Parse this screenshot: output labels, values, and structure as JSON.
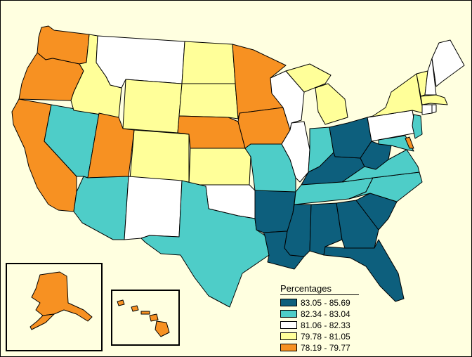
{
  "colors": {
    "background": "#ffffe0",
    "class_1": "#0d5f7d",
    "class_2": "#4ecdc8",
    "class_3": "#ffffff",
    "class_4": "#ffff99",
    "class_5": "#f79122"
  },
  "legend": {
    "title": "Percentages",
    "items": [
      {
        "label": "83.05 - 85.69",
        "color": "#0d5f7d"
      },
      {
        "label": "82.34 - 83.04",
        "color": "#4ecdc8"
      },
      {
        "label": "81.06 - 82.33",
        "color": "#ffffff"
      },
      {
        "label": "79.78 - 81.05",
        "color": "#ffff99"
      },
      {
        "label": "78.19 - 79.77",
        "color": "#f79122"
      }
    ]
  },
  "states": {
    "WA": 5,
    "OR": 5,
    "CA": 5,
    "UT": 5,
    "NE": 5,
    "MN": 5,
    "IA": 5,
    "DE": 5,
    "AK": 5,
    "HI": 5,
    "ID": 4,
    "WY": 4,
    "CO": 4,
    "ND": 4,
    "SD": 4,
    "KS": 4,
    "MI": 4,
    "NY": 4,
    "VT": 4,
    "MA": 4,
    "MT": 3,
    "NM": 3,
    "OK": 3,
    "WI": 3,
    "IL": 3,
    "PA": 3,
    "NH": 3,
    "ME": 3,
    "CT": 3,
    "RI": 3,
    "NV": 2,
    "AZ": 2,
    "TX": 2,
    "MO": 2,
    "IN": 2,
    "TN": 2,
    "VA": 2,
    "NC": 2,
    "NJ": 2,
    "MD": 2,
    "KY": 1,
    "OH": 1,
    "WV": 1,
    "AR": 1,
    "LA": 1,
    "MS": 1,
    "AL": 1,
    "GA": 1,
    "SC": 1,
    "FL": 1
  }
}
